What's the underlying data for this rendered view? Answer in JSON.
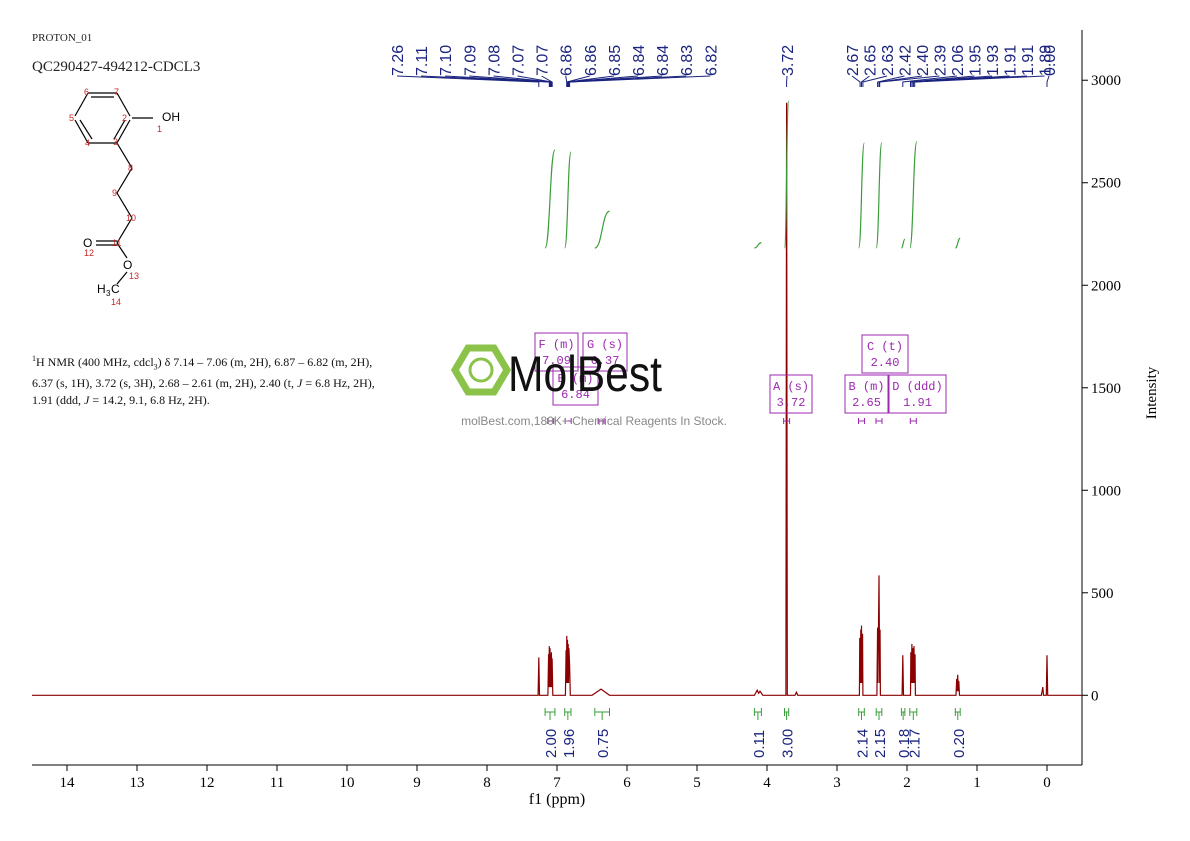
{
  "header": {
    "experiment": "PROTON_01",
    "sample": "QC290427-494212-CDCL3"
  },
  "structure": {
    "labels": [
      "OH",
      "1",
      "2",
      "3",
      "4",
      "5",
      "6",
      "7",
      "8",
      "9",
      "10",
      "11",
      "O",
      "12",
      "O",
      "13",
      "H",
      "3",
      "C",
      "14"
    ]
  },
  "description": [
    "1",
    "H NMR (400 MHz, cdcl",
    "3",
    ") δ 7.14 – 7.06 (m, 2H), 6.87 – 6.82 (m, 2H), 6.37 (s, 1H), 3.72 (s, 3H), 2.68 – 2.61 (m, 2H), 2.40 (t, ",
    "J",
    " = 6.8 Hz, 2H), 1.91 (ddd, ",
    "J",
    " = 14.2, 9.1, 6.8 Hz, 2H)."
  ],
  "watermark": {
    "brand": "MolBest",
    "tagline": "molBest.com,180K+ Chemical Reagents In Stock."
  },
  "chart_data": {
    "type": "line",
    "x_label": "f1 (ppm)",
    "y_label": "Intensity",
    "xlim": [
      14.5,
      -0.5
    ],
    "xticks": [
      14,
      13,
      12,
      11,
      10,
      9,
      8,
      7,
      6,
      5,
      4,
      3,
      2,
      1,
      0
    ],
    "ylim": [
      -340,
      3245
    ],
    "yticks": [
      0,
      500,
      1000,
      1500,
      2000,
      2500,
      3000
    ],
    "series": [
      {
        "name": "spectrum",
        "color": "#8b0000",
        "x": [
          14.5,
          7.27,
          7.26,
          7.25,
          7.13,
          7.12,
          7.115,
          7.11,
          7.105,
          7.1,
          7.095,
          7.09,
          7.085,
          7.08,
          7.075,
          7.07,
          7.06,
          6.88,
          6.87,
          6.865,
          6.86,
          6.855,
          6.85,
          6.845,
          6.84,
          6.835,
          6.83,
          6.82,
          6.81,
          6.5,
          6.37,
          6.25,
          4.18,
          4.14,
          4.12,
          4.1,
          4.06,
          3.73,
          3.72,
          3.71,
          3.6,
          3.58,
          3.56,
          2.68,
          2.675,
          2.67,
          2.66,
          2.655,
          2.65,
          2.645,
          2.635,
          2.63,
          2.43,
          2.42,
          2.415,
          2.4,
          2.39,
          2.385,
          2.38,
          2.07,
          2.06,
          2.05,
          1.95,
          1.945,
          1.94,
          1.93,
          1.925,
          1.915,
          1.91,
          1.9,
          1.895,
          1.885,
          1.88,
          1.3,
          1.29,
          1.285,
          1.275,
          1.27,
          1.26,
          1.25,
          0.08,
          0.06,
          0.05,
          0.01,
          0,
          -0.01,
          -0.5
        ],
        "values": [
          0,
          0,
          185,
          0,
          0,
          200,
          40,
          240,
          40,
          230,
          40,
          200,
          40,
          210,
          40,
          180,
          0,
          0,
          220,
          60,
          290,
          60,
          270,
          60,
          250,
          60,
          230,
          150,
          0,
          0,
          30,
          0,
          0,
          25,
          10,
          20,
          0,
          0,
          2890,
          0,
          0,
          15,
          0,
          0,
          280,
          60,
          320,
          60,
          340,
          60,
          300,
          0,
          0,
          330,
          60,
          585,
          60,
          320,
          0,
          0,
          195,
          0,
          0,
          210,
          60,
          250,
          60,
          230,
          60,
          240,
          60,
          200,
          0,
          0,
          80,
          20,
          100,
          20,
          70,
          0,
          0,
          40,
          0,
          0,
          195,
          0,
          0
        ]
      }
    ],
    "peak_labels": [
      "7.26",
      "7.11",
      "7.10",
      "7.09",
      "7.08",
      "7.07",
      "7.07",
      "6.86",
      "6.86",
      "6.85",
      "6.84",
      "6.84",
      "6.83",
      "6.82",
      "3.72",
      "2.67",
      "2.65",
      "2.63",
      "2.42",
      "2.40",
      "2.39",
      "2.06",
      "1.95",
      "1.93",
      "1.91",
      "1.91",
      "1.89",
      "0.00"
    ],
    "integrals": [
      {
        "value": 2,
        "label": "2.00",
        "range": [
          7.17,
          7.03
        ]
      },
      {
        "value": 1.96,
        "label": "1.96",
        "range": [
          6.89,
          6.8
        ]
      },
      {
        "value": 0.75,
        "label": "0.75",
        "range": [
          6.46,
          6.25
        ]
      },
      {
        "value": 0.11,
        "label": "0.11",
        "range": [
          4.18,
          4.08
        ]
      },
      {
        "value": 3,
        "label": "3.00",
        "range": [
          3.75,
          3.69
        ]
      },
      {
        "value": 2.14,
        "label": "2.14",
        "range": [
          2.69,
          2.61
        ]
      },
      {
        "value": 2.15,
        "label": "2.15",
        "range": [
          2.44,
          2.36
        ]
      },
      {
        "value": 0.18,
        "label": "0.18",
        "range": [
          2.08,
          2.03
        ]
      },
      {
        "value": 2.17,
        "label": "2.17",
        "range": [
          1.96,
          1.86
        ]
      },
      {
        "value": 0.2,
        "label": "0.20",
        "range": [
          1.31,
          1.24
        ]
      }
    ],
    "multiplets": [
      {
        "name": "F (m)",
        "shift": "7.09"
      },
      {
        "name": "G (s)",
        "shift": "6.37"
      },
      {
        "name": "E (m)",
        "shift": "6.84"
      },
      {
        "name": "A (s)",
        "shift": "3.72"
      },
      {
        "name": "B (m)",
        "shift": "2.65"
      },
      {
        "name": "C (t)",
        "shift": "2.40"
      },
      {
        "name": "D (ddd)",
        "shift": "1.91"
      }
    ]
  }
}
